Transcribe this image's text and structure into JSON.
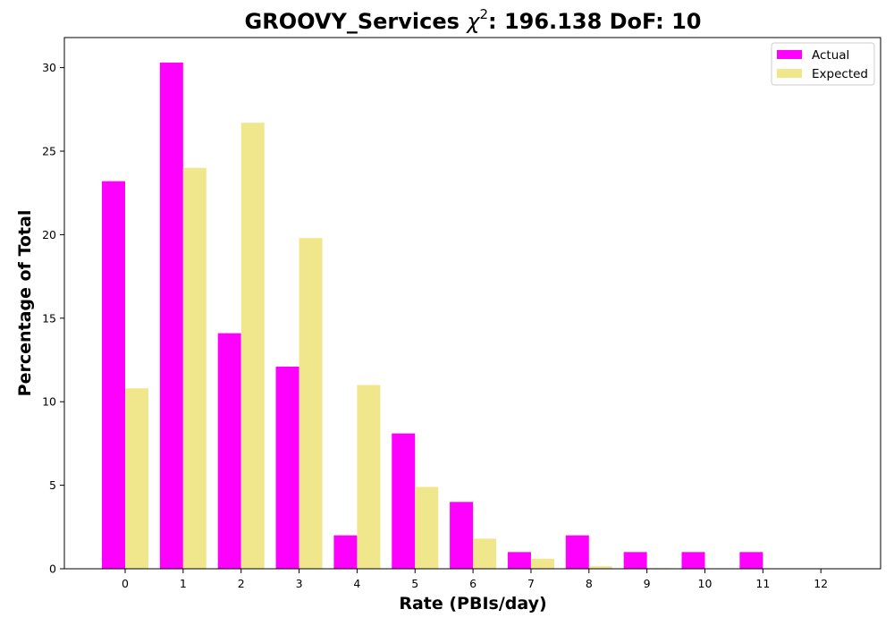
{
  "chart_data": {
    "type": "bar",
    "title": {
      "prefix": "GROOVY_Services ",
      "chi_symbol": "χ",
      "chi_superscript": "2",
      "suffix": ": 196.138 DoF: 10"
    },
    "xlabel": "Rate (PBIs/day)",
    "ylabel": "Percentage of Total",
    "categories": [
      "0",
      "1",
      "2",
      "3",
      "4",
      "5",
      "6",
      "7",
      "8",
      "9",
      "10",
      "11",
      "12"
    ],
    "yticks": [
      "0",
      "5",
      "10",
      "15",
      "20",
      "25",
      "30"
    ],
    "ylim": [
      0,
      31.8
    ],
    "grid": false,
    "legend_position": "top-right",
    "series": [
      {
        "name": "Actual",
        "color": "#ff00ff",
        "values": [
          23.2,
          30.3,
          14.1,
          12.1,
          2.0,
          8.1,
          4.0,
          1.0,
          2.0,
          1.0,
          1.0,
          1.0,
          0
        ]
      },
      {
        "name": "Expected",
        "color": "#f0e68c",
        "values": [
          10.8,
          24.0,
          26.7,
          19.8,
          11.0,
          4.9,
          1.8,
          0.6,
          0.15,
          0.04,
          0.01,
          0.002,
          0.0003
        ]
      }
    ]
  }
}
